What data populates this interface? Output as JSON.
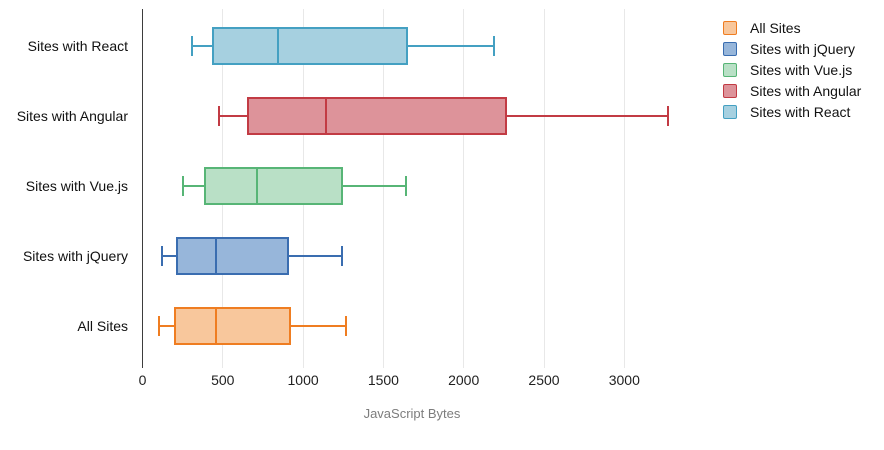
{
  "chart_data": {
    "type": "boxplot",
    "orientation": "horizontal",
    "title": "",
    "xlabel": "JavaScript Bytes",
    "x_ticks": [
      0,
      500,
      1000,
      1500,
      2000,
      2500,
      3000
    ],
    "xlim": [
      0,
      3500
    ],
    "grid": true,
    "axis_color": "#3d3d3d",
    "gridline_color": "#e8e8e8",
    "categories_top_to_bottom": [
      "Sites with React",
      "Sites with Angular",
      "Sites with Vue.js",
      "Sites with jQuery",
      "All Sites"
    ],
    "series": [
      {
        "name": "Sites with React",
        "min": 310,
        "q1": 430,
        "median": 845,
        "q3": 1655,
        "max": 2190,
        "stroke": "#44a0c2",
        "fill": "#a6d0e0"
      },
      {
        "name": "Sites with Angular",
        "min": 475,
        "q1": 650,
        "median": 1140,
        "q3": 2270,
        "max": 3275,
        "stroke": "#c23b44",
        "fill": "#dd939a"
      },
      {
        "name": "Sites with Vue.js",
        "min": 250,
        "q1": 380,
        "median": 715,
        "q3": 1250,
        "max": 1640,
        "stroke": "#57b576",
        "fill": "#b9e0c6"
      },
      {
        "name": "Sites with jQuery",
        "min": 120,
        "q1": 210,
        "median": 455,
        "q3": 915,
        "max": 1240,
        "stroke": "#3a6db0",
        "fill": "#97b6da"
      },
      {
        "name": "All Sites",
        "min": 105,
        "q1": 195,
        "median": 455,
        "q3": 925,
        "max": 1270,
        "stroke": "#ef7d21",
        "fill": "#f8c79c"
      }
    ],
    "legend": {
      "position": "top-right",
      "items": [
        "All Sites",
        "Sites with jQuery",
        "Sites with Vue.js",
        "Sites with Angular",
        "Sites with React"
      ]
    }
  }
}
